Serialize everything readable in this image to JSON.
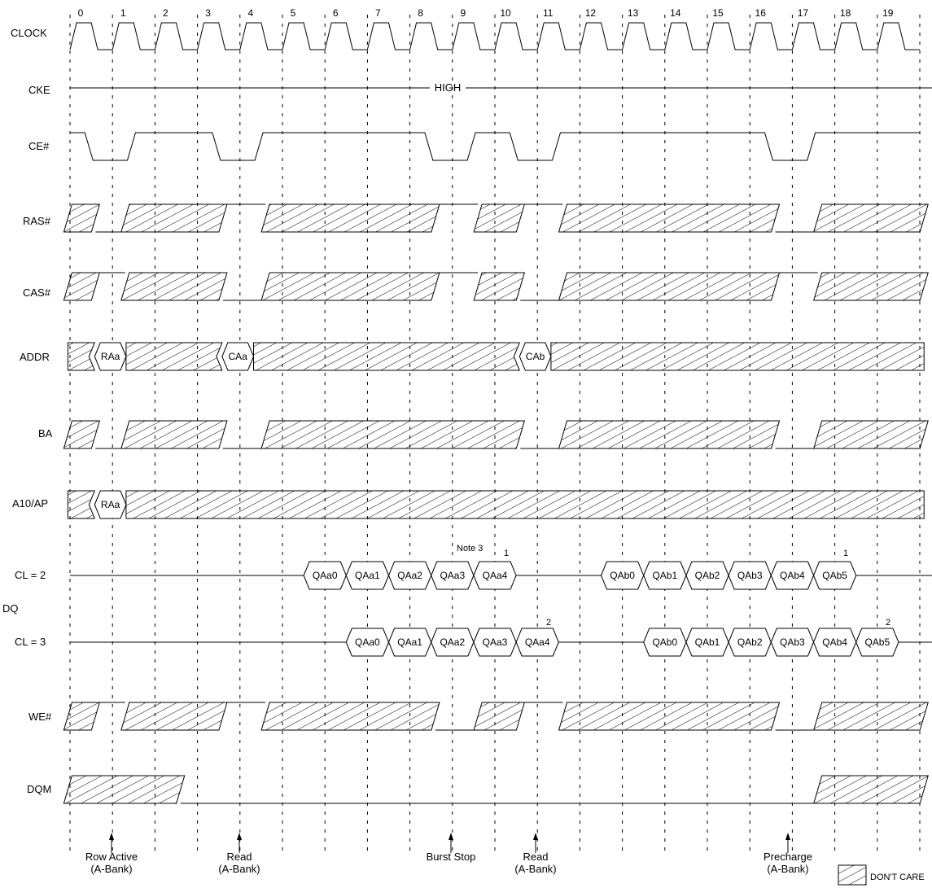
{
  "cycles": [
    "0",
    "1",
    "2",
    "3",
    "4",
    "5",
    "6",
    "7",
    "8",
    "9",
    "10",
    "11",
    "12",
    "13",
    "14",
    "15",
    "16",
    "17",
    "18",
    "19"
  ],
  "signals": {
    "clock": "CLOCK",
    "cke": "CKE",
    "ce": "CE#",
    "ras": "RAS#",
    "cas": "CAS#",
    "addr": "ADDR",
    "ba": "BA",
    "a10": "A10/AP",
    "dq_group": "DQ",
    "cl2": "CL = 2",
    "cl3": "CL = 3",
    "we": "WE#",
    "dqm": "DQM"
  },
  "cke_value": "HIGH",
  "addr_cells": [
    "RAa",
    "CAa",
    "CAb"
  ],
  "a10_cells": [
    "RAa"
  ],
  "dq_cl2": [
    "QAa0",
    "QAa1",
    "QAa2",
    "QAa3",
    "QAa4",
    "QAb0",
    "QAb1",
    "QAb2",
    "QAb3",
    "QAb4",
    "QAb5"
  ],
  "dq_cl3": [
    "QAa0",
    "QAa1",
    "QAa2",
    "QAa3",
    "QAa4",
    "QAb0",
    "QAb1",
    "QAb2",
    "QAb3",
    "QAb4",
    "QAb5"
  ],
  "notes": {
    "note3": "Note 3",
    "cl2_end_a": "1",
    "cl2_end_b": "1",
    "cl3_end_a": "2",
    "cl3_end_b": "2"
  },
  "annotations": [
    {
      "line1": "Row Active",
      "line2": "(A-Bank)"
    },
    {
      "line1": "Read",
      "line2": "(A-Bank)"
    },
    {
      "line1": "Burst Stop",
      "line2": ""
    },
    {
      "line1": "Read",
      "line2": "(A-Bank)"
    },
    {
      "line1": "Precharge",
      "line2": "(A-Bank)"
    }
  ],
  "legend": {
    "label": "DON'T CARE"
  }
}
